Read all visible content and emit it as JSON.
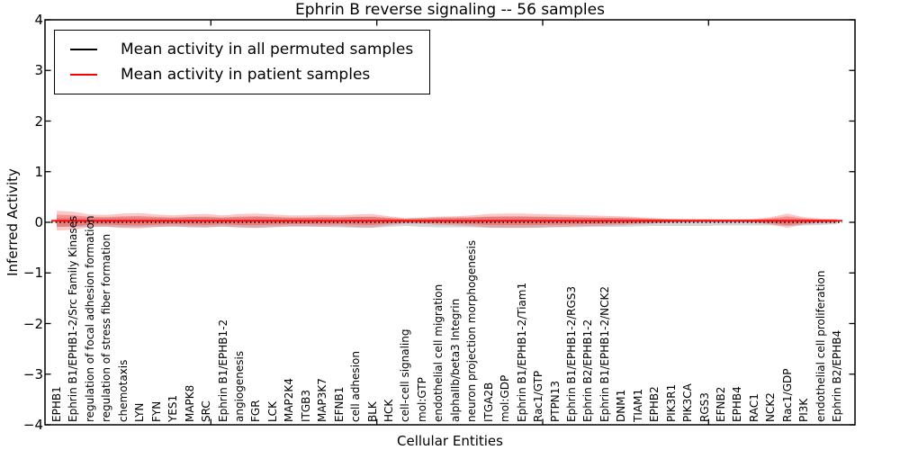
{
  "title": "Ephrin B reverse signaling -- 56 samples",
  "axes": {
    "ylabel": "Inferred Activity",
    "xlabel": "Cellular Entities",
    "ytick_labels": [
      "4",
      "3",
      "2",
      "1",
      "0",
      "−1",
      "−2",
      "−3",
      "−4"
    ],
    "ylim": [
      -4,
      4
    ]
  },
  "legend": [
    {
      "label": "Mean activity in all permuted samples",
      "color": "#000000"
    },
    {
      "label": "Mean activity in patient samples",
      "color": "#ff0000"
    }
  ],
  "chart_data": {
    "type": "line",
    "title": "Ephrin B reverse signaling -- 56 samples",
    "xlabel": "Cellular Entities",
    "ylabel": "Inferred Activity",
    "ylim": [
      -4,
      4
    ],
    "grid": false,
    "legend_position": "upper left",
    "x_categories": [
      "EPHB1",
      "Ephrin B1/EPHB1-2/Src Family Kinases",
      "regulation of focal adhesion formation",
      "regulation of stress fiber formation",
      "chemotaxis",
      "LYN",
      "FYN",
      "YES1",
      "MAPK8",
      "SRC",
      "Ephrin B1/EPHB1-2",
      "angiogenesis",
      "FGR",
      "LCK",
      "MAP2K4",
      "ITGB3",
      "MAP3K7",
      "EFNB1",
      "cell adhesion",
      "BLK",
      "HCK",
      "cell-cell signaling",
      "mol:GTP",
      "endothelial cell migration",
      "alphaIIb/beta3 Integrin",
      "neuron projection morphogenesis",
      "ITGA2B",
      "mol:GDP",
      "Ephrin B1/EPHB1-2/Tiam1",
      "Rac1/GTP",
      "PTPN13",
      "Ephrin B1/EPHB1-2/RGS3",
      "Ephrin B2/EPHB1-2",
      "Ephrin B1/EPHB1-2/NCK2",
      "DNM1",
      "TIAM1",
      "EPHB2",
      "PIK3R1",
      "PIK3CA",
      "RGS3",
      "EFNB2",
      "EPHB4",
      "RAC1",
      "NCK2",
      "Rac1/GDP",
      "PI3K",
      "endothelial cell proliferation",
      "Ephrin B2/EPHB4"
    ],
    "series": [
      {
        "name": "Mean activity in all permuted samples",
        "color": "#000000",
        "style": "dashed",
        "mean": 0.0
      },
      {
        "name": "Mean activity in patient samples",
        "color": "#ff0000",
        "style": "solid",
        "mean": 0.03
      }
    ],
    "bands": [
      {
        "name": "permuted-samples-spread",
        "color": "#b8b8b8",
        "opacity": 0.6,
        "center": 0.0,
        "half_widths": [
          0.089,
          0.089,
          0.089,
          0.089,
          0.098,
          0.098,
          0.089,
          0.089,
          0.098,
          0.098,
          0.089,
          0.098,
          0.107,
          0.098,
          0.089,
          0.089,
          0.089,
          0.098,
          0.107,
          0.107,
          0.089,
          0.071,
          0.089,
          0.098,
          0.098,
          0.098,
          0.107,
          0.107,
          0.107,
          0.107,
          0.098,
          0.098,
          0.089,
          0.089,
          0.089,
          0.08,
          0.071,
          0.071,
          0.071,
          0.071,
          0.062,
          0.062,
          0.062,
          0.062,
          0.071,
          0.062,
          0.053,
          0.036
        ]
      },
      {
        "name": "patient-samples-spread",
        "color": "#f04848",
        "opacity": 0.3,
        "center": 0.03,
        "half_widths": [
          0.196,
          0.178,
          0.124,
          0.116,
          0.142,
          0.151,
          0.124,
          0.107,
          0.124,
          0.133,
          0.107,
          0.133,
          0.142,
          0.124,
          0.107,
          0.107,
          0.116,
          0.107,
          0.124,
          0.133,
          0.089,
          0.053,
          0.062,
          0.08,
          0.089,
          0.107,
          0.133,
          0.142,
          0.142,
          0.133,
          0.124,
          0.116,
          0.107,
          0.098,
          0.089,
          0.071,
          0.053,
          0.036,
          0.027,
          0.027,
          0.027,
          0.027,
          0.036,
          0.071,
          0.142,
          0.071,
          0.044,
          0.036
        ]
      }
    ]
  }
}
